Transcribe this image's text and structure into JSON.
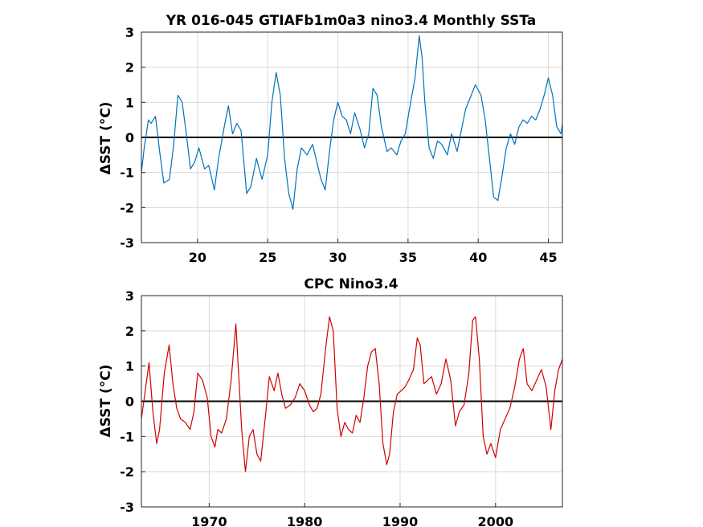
{
  "chart_data": [
    {
      "type": "line",
      "title": "YR 016-045 GTIAFb1m0a3 nino3.4 Monthly SSTa",
      "ylabel": "ΔSST (°C)",
      "xlabel": "",
      "xlim": [
        16,
        46
      ],
      "ylim": [
        -3,
        3
      ],
      "xticks": [
        20,
        25,
        30,
        35,
        40,
        45
      ],
      "yticks": [
        -3,
        -2,
        -1,
        0,
        1,
        2,
        3
      ],
      "grid": true,
      "zero_line": true,
      "color": "#0072bd",
      "series": [
        {
          "x": [
            16.0,
            16.2,
            16.5,
            16.7,
            17.0,
            17.3,
            17.6,
            18.0,
            18.3,
            18.6,
            18.9,
            19.2,
            19.5,
            19.8,
            20.1,
            20.5,
            20.8,
            21.2,
            21.5,
            21.9,
            22.2,
            22.5,
            22.8,
            23.1,
            23.5,
            23.8,
            24.2,
            24.6,
            25.0,
            25.3,
            25.6,
            25.9,
            26.2,
            26.5,
            26.8,
            27.1,
            27.4,
            27.8,
            28.2,
            28.5,
            28.8,
            29.1,
            29.4,
            29.7,
            30.0,
            30.3,
            30.6,
            30.9,
            31.2,
            31.6,
            31.9,
            32.2,
            32.5,
            32.8,
            33.1,
            33.5,
            33.8,
            34.2,
            34.5,
            34.8,
            35.1,
            35.5,
            35.8,
            36.0,
            36.2,
            36.5,
            36.8,
            37.1,
            37.4,
            37.8,
            38.1,
            38.5,
            38.8,
            39.1,
            39.4,
            39.8,
            40.2,
            40.5,
            40.8,
            41.1,
            41.4,
            41.7,
            42.0,
            42.3,
            42.6,
            42.9,
            43.2,
            43.5,
            43.8,
            44.1,
            44.4,
            44.7,
            45.0,
            45.3,
            45.6,
            45.9,
            46.0
          ],
          "y": [
            -1.0,
            -0.3,
            0.5,
            0.4,
            0.6,
            -0.4,
            -1.3,
            -1.2,
            -0.2,
            1.2,
            1.0,
            0.1,
            -0.9,
            -0.7,
            -0.3,
            -0.9,
            -0.8,
            -1.5,
            -0.6,
            0.3,
            0.9,
            0.1,
            0.4,
            0.2,
            -1.6,
            -1.4,
            -0.6,
            -1.2,
            -0.5,
            1.0,
            1.85,
            1.2,
            -0.6,
            -1.6,
            -2.05,
            -0.9,
            -0.3,
            -0.5,
            -0.2,
            -0.7,
            -1.2,
            -1.5,
            -0.4,
            0.5,
            1.0,
            0.6,
            0.5,
            0.1,
            0.7,
            0.2,
            -0.3,
            0.1,
            1.4,
            1.2,
            0.3,
            -0.4,
            -0.3,
            -0.5,
            -0.1,
            0.1,
            0.8,
            1.7,
            2.9,
            2.3,
            1.0,
            -0.3,
            -0.6,
            -0.1,
            -0.2,
            -0.5,
            0.1,
            -0.4,
            0.2,
            0.8,
            1.1,
            1.5,
            1.2,
            0.5,
            -0.6,
            -1.7,
            -1.8,
            -1.1,
            -0.3,
            0.1,
            -0.2,
            0.3,
            0.5,
            0.4,
            0.6,
            0.5,
            0.8,
            1.2,
            1.7,
            1.2,
            0.3,
            0.1,
            0.4
          ]
        }
      ]
    },
    {
      "type": "line",
      "title": "CPC Nino3.4",
      "ylabel": "ΔSST (°C)",
      "xlabel": "",
      "xlim": [
        1962.9,
        2007
      ],
      "ylim": [
        -3,
        3
      ],
      "xticks": [
        1970,
        1980,
        1990,
        2000
      ],
      "yticks": [
        -3,
        -2,
        -1,
        0,
        1,
        2,
        3
      ],
      "grid": true,
      "zero_line": true,
      "color": "#d00000",
      "series": [
        {
          "x": [
            1962.9,
            1963.3,
            1963.7,
            1964.1,
            1964.5,
            1964.8,
            1965.3,
            1965.8,
            1966.2,
            1966.6,
            1967.0,
            1967.5,
            1968.0,
            1968.4,
            1968.8,
            1969.3,
            1969.8,
            1970.2,
            1970.6,
            1970.9,
            1971.3,
            1971.8,
            1972.3,
            1972.8,
            1973.0,
            1973.4,
            1973.8,
            1974.2,
            1974.6,
            1975.0,
            1975.4,
            1975.9,
            1976.3,
            1976.8,
            1977.2,
            1977.6,
            1978.0,
            1978.5,
            1979.0,
            1979.5,
            1980.0,
            1980.5,
            1980.9,
            1981.3,
            1981.7,
            1982.2,
            1982.6,
            1983.0,
            1983.4,
            1983.8,
            1984.2,
            1984.6,
            1985.0,
            1985.4,
            1985.8,
            1986.2,
            1986.6,
            1987.0,
            1987.4,
            1987.8,
            1988.2,
            1988.6,
            1988.9,
            1989.3,
            1989.7,
            1990.1,
            1990.5,
            1990.9,
            1991.4,
            1991.8,
            1992.1,
            1992.5,
            1992.9,
            1993.3,
            1993.8,
            1994.3,
            1994.8,
            1995.3,
            1995.8,
            1996.2,
            1996.7,
            1997.2,
            1997.6,
            1997.9,
            1998.3,
            1998.7,
            1999.1,
            1999.5,
            2000.0,
            2000.5,
            2001.0,
            2001.5,
            2002.0,
            2002.5,
            2002.9,
            2003.3,
            2003.8,
            2004.3,
            2004.8,
            2005.3,
            2005.8,
            2006.2,
            2006.6,
            2007.0
          ],
          "y": [
            -0.5,
            0.3,
            1.1,
            -0.3,
            -1.2,
            -0.8,
            0.8,
            1.6,
            0.5,
            -0.2,
            -0.5,
            -0.6,
            -0.8,
            -0.3,
            0.8,
            0.6,
            0.1,
            -1.0,
            -1.3,
            -0.8,
            -0.9,
            -0.5,
            0.6,
            2.2,
            1.2,
            -0.8,
            -2.0,
            -1.0,
            -0.8,
            -1.5,
            -1.7,
            -0.4,
            0.7,
            0.3,
            0.8,
            0.2,
            -0.2,
            -0.1,
            0.1,
            0.5,
            0.3,
            -0.1,
            -0.3,
            -0.2,
            0.2,
            1.5,
            2.4,
            2.0,
            -0.2,
            -1.0,
            -0.6,
            -0.8,
            -0.9,
            -0.4,
            -0.6,
            0.1,
            1.0,
            1.4,
            1.5,
            0.5,
            -1.2,
            -1.8,
            -1.5,
            -0.3,
            0.2,
            0.3,
            0.4,
            0.6,
            0.9,
            1.8,
            1.6,
            0.5,
            0.6,
            0.7,
            0.2,
            0.5,
            1.2,
            0.6,
            -0.7,
            -0.3,
            -0.1,
            0.8,
            2.3,
            2.4,
            1.2,
            -1.0,
            -1.5,
            -1.2,
            -1.6,
            -0.8,
            -0.5,
            -0.2,
            0.4,
            1.2,
            1.5,
            0.5,
            0.3,
            0.6,
            0.9,
            0.4,
            -0.8,
            0.3,
            0.9,
            1.2
          ]
        }
      ]
    }
  ]
}
